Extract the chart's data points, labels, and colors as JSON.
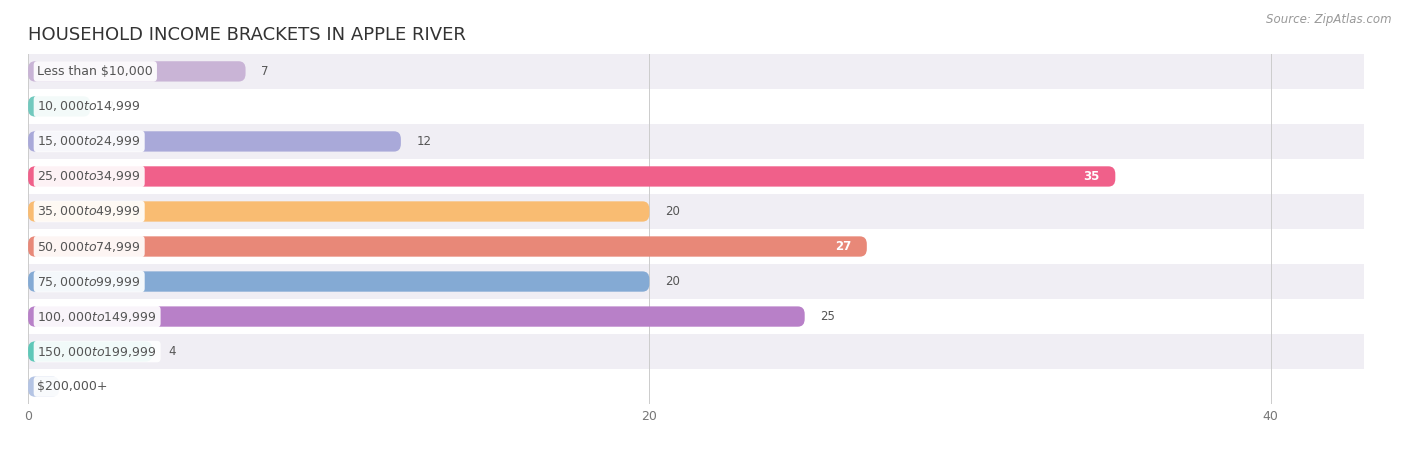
{
  "title": "HOUSEHOLD INCOME BRACKETS IN APPLE RIVER",
  "source": "Source: ZipAtlas.com",
  "categories": [
    "Less than $10,000",
    "$10,000 to $14,999",
    "$15,000 to $24,999",
    "$25,000 to $34,999",
    "$35,000 to $49,999",
    "$50,000 to $74,999",
    "$75,000 to $99,999",
    "$100,000 to $149,999",
    "$150,000 to $199,999",
    "$200,000+"
  ],
  "values": [
    7,
    2,
    12,
    35,
    20,
    27,
    20,
    25,
    4,
    1
  ],
  "bar_colors": [
    "#c9b4d6",
    "#72c9be",
    "#a9a9d9",
    "#f0608a",
    "#f9bc72",
    "#e88878",
    "#84aad4",
    "#b880c8",
    "#5ec8b8",
    "#b4c4e4"
  ],
  "xlim": [
    0,
    43
  ],
  "xticks": [
    0,
    20,
    40
  ],
  "bg_color": "#ffffff",
  "row_colors": [
    "#f0eef4",
    "#ffffff"
  ],
  "title_fontsize": 13,
  "label_fontsize": 9,
  "value_fontsize": 8.5,
  "bar_height": 0.58,
  "label_text_color": "#555555",
  "value_text_color_inside": "#ffffff",
  "value_text_color_outside": "#555555",
  "source_color": "#999999",
  "inside_threshold": 27
}
